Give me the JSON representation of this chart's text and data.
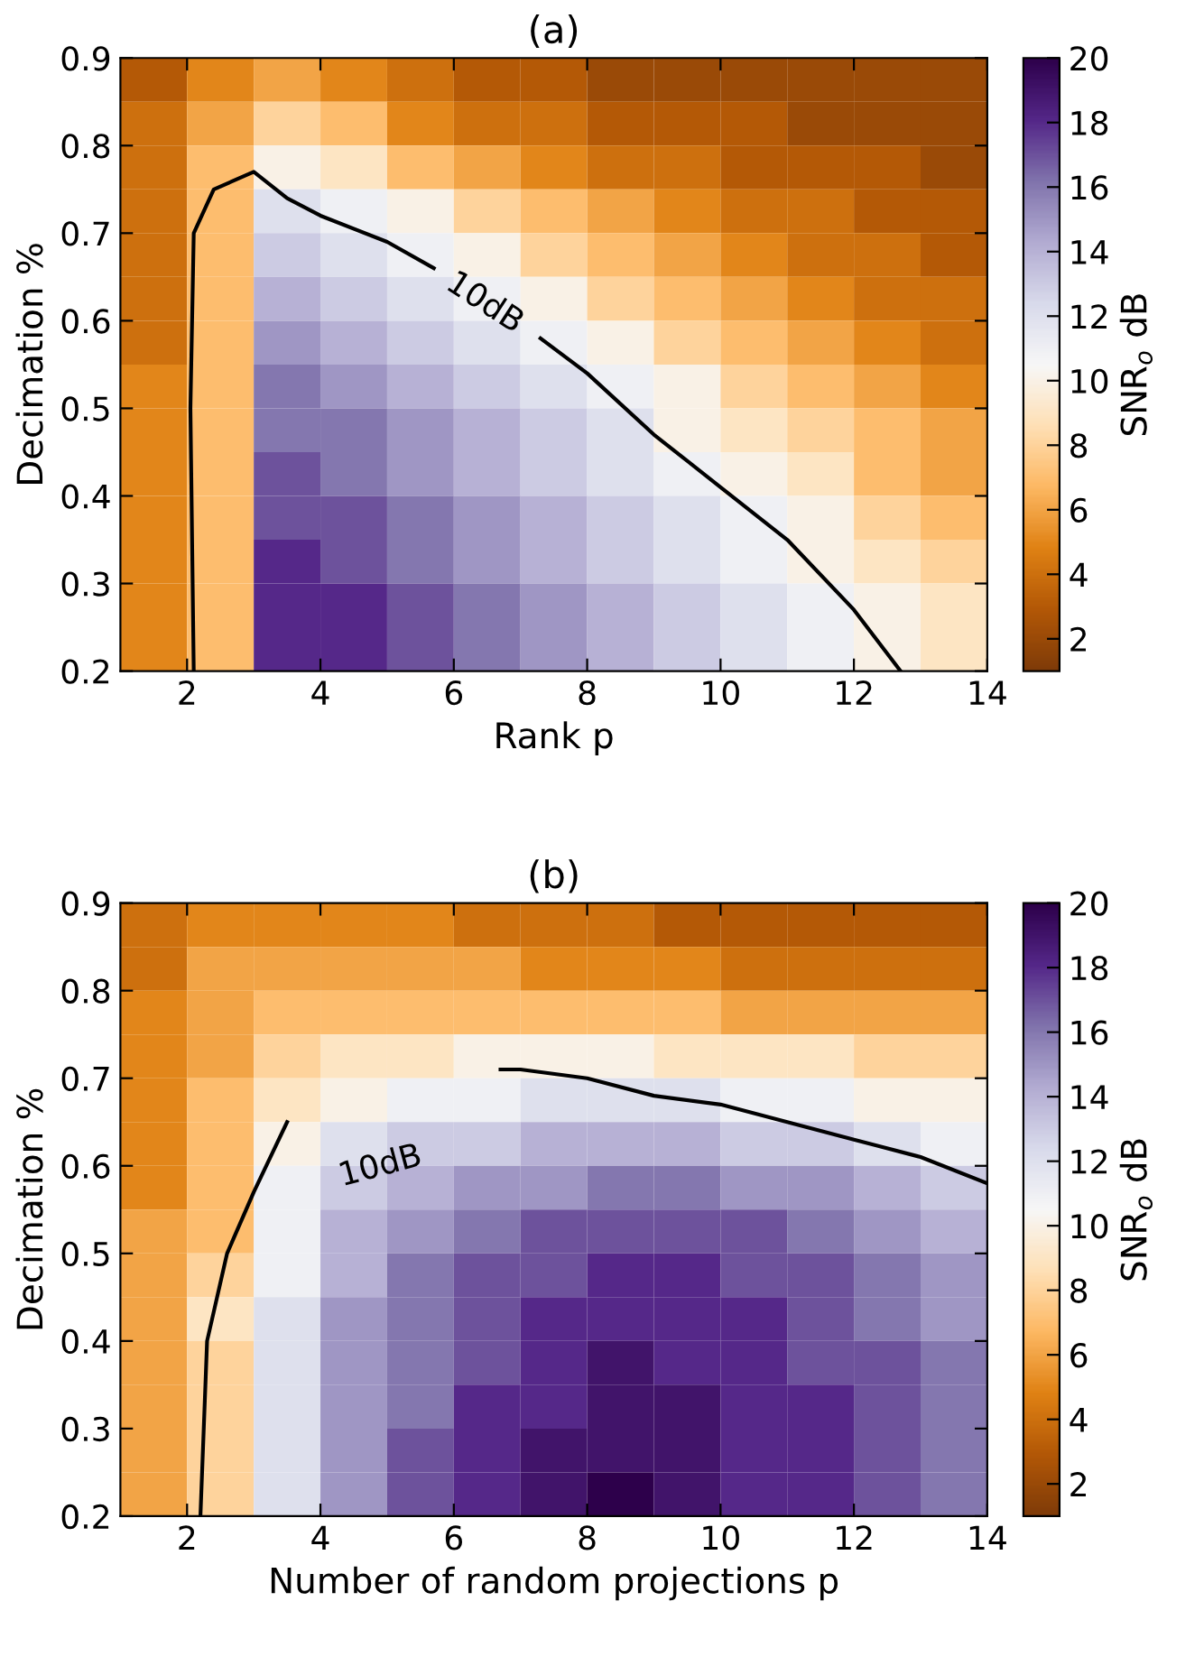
{
  "chart_data": [
    {
      "type": "heatmap",
      "title": "(a)",
      "xlabel": "Rank p",
      "ylabel": "Decimation %",
      "clabel": "SNR$_{o}$ dB",
      "x": [
        1.5,
        2.5,
        3.5,
        4.5,
        5.5,
        6.5,
        7.5,
        8.5,
        9.5,
        10.5,
        11.5,
        12.5,
        13.5
      ],
      "y": [
        0.875,
        0.825,
        0.775,
        0.725,
        0.675,
        0.625,
        0.575,
        0.525,
        0.475,
        0.425,
        0.375,
        0.325,
        0.275,
        0.225
      ],
      "cells": [
        [
          3,
          5,
          6,
          5,
          4,
          3,
          3,
          2,
          2,
          2,
          2,
          2,
          2
        ],
        [
          4,
          6,
          8,
          7,
          5,
          4,
          4,
          3,
          3,
          3,
          2,
          2,
          2
        ],
        [
          4,
          7,
          10,
          9,
          7,
          6,
          5,
          4,
          4,
          3,
          3,
          3,
          2
        ],
        [
          4,
          7,
          12,
          11,
          10,
          8,
          7,
          6,
          5,
          4,
          4,
          3,
          3
        ],
        [
          4,
          7,
          13,
          12,
          11,
          10,
          8,
          7,
          6,
          5,
          4,
          4,
          3
        ],
        [
          4,
          7,
          14,
          13,
          12,
          11,
          10,
          8,
          7,
          6,
          5,
          4,
          4
        ],
        [
          4,
          7,
          15,
          14,
          13,
          12,
          11,
          10,
          8,
          7,
          6,
          5,
          4
        ],
        [
          5,
          7,
          16,
          15,
          14,
          13,
          12,
          11,
          10,
          8,
          7,
          6,
          5
        ],
        [
          5,
          7,
          16,
          16,
          15,
          14,
          13,
          12,
          10,
          9,
          8,
          7,
          6
        ],
        [
          5,
          7,
          17,
          16,
          15,
          14,
          13,
          12,
          11,
          10,
          9,
          7,
          6
        ],
        [
          5,
          7,
          17,
          17,
          16,
          15,
          14,
          13,
          12,
          11,
          10,
          8,
          7
        ],
        [
          5,
          7,
          18,
          17,
          16,
          15,
          14,
          13,
          12,
          11,
          10,
          9,
          8
        ],
        [
          5,
          7,
          18,
          18,
          17,
          16,
          15,
          14,
          13,
          12,
          11,
          10,
          9
        ],
        [
          5,
          7,
          18,
          18,
          17,
          16,
          15,
          14,
          13,
          12,
          11,
          10,
          9
        ]
      ],
      "clim": [
        1,
        20
      ],
      "cticks": [
        2,
        4,
        6,
        8,
        10,
        12,
        14,
        16,
        18,
        20
      ],
      "xlim": [
        1,
        14
      ],
      "xticks": [
        2,
        4,
        6,
        8,
        10,
        12,
        14
      ],
      "ylim": [
        0.2,
        0.9
      ],
      "yticks": [
        0.2,
        0.3,
        0.4,
        0.5,
        0.6,
        0.7,
        0.8,
        0.9
      ],
      "series": [
        {
          "type": "line",
          "color": "#000000",
          "x": [
            2.1,
            2.05,
            2.1,
            2.4,
            3,
            3.5,
            4,
            5,
            5.7,
            6.5,
            7.3,
            8,
            9,
            10,
            11,
            12,
            12.7
          ],
          "values": [
            0.2,
            0.5,
            0.7,
            0.75,
            0.77,
            0.74,
            0.72,
            0.69,
            0.66,
            null,
            0.58,
            0.54,
            0.47,
            0.41,
            0.35,
            0.27,
            0.2
          ]
        }
      ],
      "annotations": [
        "10dB"
      ],
      "grid": false
    },
    {
      "type": "heatmap",
      "title": "(b)",
      "xlabel": "Number of random projections p",
      "ylabel": "Decimation %",
      "clabel": "SNR$_{o}$ dB",
      "x": [
        1.5,
        2.5,
        3.5,
        4.5,
        5.5,
        6.5,
        7.5,
        8.5,
        9.5,
        10.5,
        11.5,
        12.5,
        13.5
      ],
      "y": [
        0.875,
        0.825,
        0.775,
        0.725,
        0.675,
        0.625,
        0.575,
        0.525,
        0.475,
        0.425,
        0.375,
        0.325,
        0.275,
        0.225
      ],
      "cells": [
        [
          4,
          5,
          5,
          5,
          5,
          4,
          4,
          4,
          3,
          3,
          3,
          3,
          3
        ],
        [
          4,
          6,
          6,
          6,
          6,
          6,
          5,
          5,
          5,
          4,
          4,
          4,
          4
        ],
        [
          5,
          6,
          7,
          7,
          7,
          7,
          7,
          7,
          7,
          6,
          6,
          6,
          6
        ],
        [
          5,
          6,
          8,
          9,
          9,
          10,
          10,
          10,
          9,
          9,
          9,
          8,
          8
        ],
        [
          5,
          7,
          9,
          10,
          11,
          11,
          12,
          12,
          12,
          11,
          11,
          10,
          10
        ],
        [
          5,
          7,
          10,
          12,
          13,
          13,
          14,
          14,
          14,
          13,
          13,
          12,
          11
        ],
        [
          5,
          7,
          11,
          13,
          14,
          15,
          15,
          16,
          16,
          15,
          15,
          14,
          13
        ],
        [
          6,
          7,
          11,
          14,
          15,
          16,
          17,
          17,
          17,
          17,
          16,
          15,
          14
        ],
        [
          6,
          8,
          11,
          14,
          16,
          17,
          17,
          18,
          18,
          17,
          17,
          16,
          15
        ],
        [
          6,
          9,
          12,
          15,
          16,
          17,
          18,
          18,
          18,
          18,
          17,
          16,
          15
        ],
        [
          6,
          8,
          12,
          15,
          16,
          17,
          18,
          19,
          18,
          18,
          17,
          17,
          16
        ],
        [
          6,
          8,
          12,
          15,
          16,
          18,
          18,
          19,
          19,
          18,
          18,
          17,
          16
        ],
        [
          6,
          8,
          12,
          15,
          17,
          18,
          19,
          19,
          19,
          18,
          18,
          17,
          16
        ],
        [
          6,
          8,
          12,
          15,
          17,
          18,
          19,
          20,
          19,
          18,
          18,
          17,
          16
        ]
      ],
      "clim": [
        1,
        20
      ],
      "cticks": [
        2,
        4,
        6,
        8,
        10,
        12,
        14,
        16,
        18,
        20
      ],
      "xlim": [
        1,
        14
      ],
      "xticks": [
        2,
        4,
        6,
        8,
        10,
        12,
        14
      ],
      "ylim": [
        0.2,
        0.9
      ],
      "yticks": [
        0.2,
        0.3,
        0.4,
        0.5,
        0.6,
        0.7,
        0.8,
        0.9
      ],
      "series": [
        {
          "type": "line",
          "color": "#000000",
          "x": [
            2.2,
            2.3,
            2.6,
            3,
            3.5,
            5,
            6.7,
            7,
            8,
            9,
            10,
            11,
            12,
            13,
            14
          ],
          "values": [
            0.2,
            0.4,
            0.5,
            0.57,
            0.65,
            null,
            0.71,
            0.71,
            0.7,
            0.68,
            0.67,
            0.65,
            0.63,
            0.61,
            0.58
          ]
        }
      ],
      "annotations": [
        "10dB"
      ],
      "grid": false
    }
  ]
}
